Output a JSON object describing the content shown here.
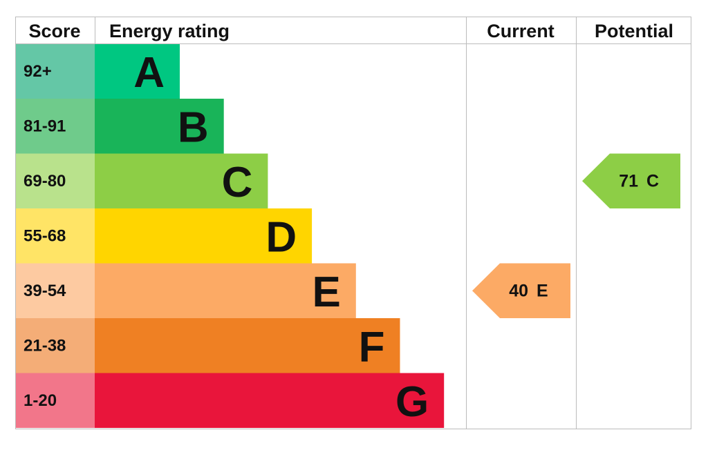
{
  "headers": {
    "score": "Score",
    "rating": "Energy rating",
    "current": "Current",
    "potential": "Potential"
  },
  "rows": [
    {
      "score": "92+",
      "band": "A",
      "color": "#00c781",
      "score_color": "#64c7a6"
    },
    {
      "score": "81-91",
      "band": "B",
      "color": "#19b459",
      "score_color": "#6fcb8b"
    },
    {
      "score": "69-80",
      "band": "C",
      "color": "#8dce46",
      "score_color": "#b9e28c"
    },
    {
      "score": "55-68",
      "band": "D",
      "color": "#ffd500",
      "score_color": "#ffe466"
    },
    {
      "score": "39-54",
      "band": "E",
      "color": "#fcaa65",
      "score_color": "#fdcaa1"
    },
    {
      "score": "21-38",
      "band": "F",
      "color": "#ef8023",
      "score_color": "#f4ad77"
    },
    {
      "score": "1-20",
      "band": "G",
      "color": "#e9153b",
      "score_color": "#f2768a"
    }
  ],
  "current": {
    "score": 40,
    "band": "E"
  },
  "potential": {
    "score": 71,
    "band": "C"
  }
}
